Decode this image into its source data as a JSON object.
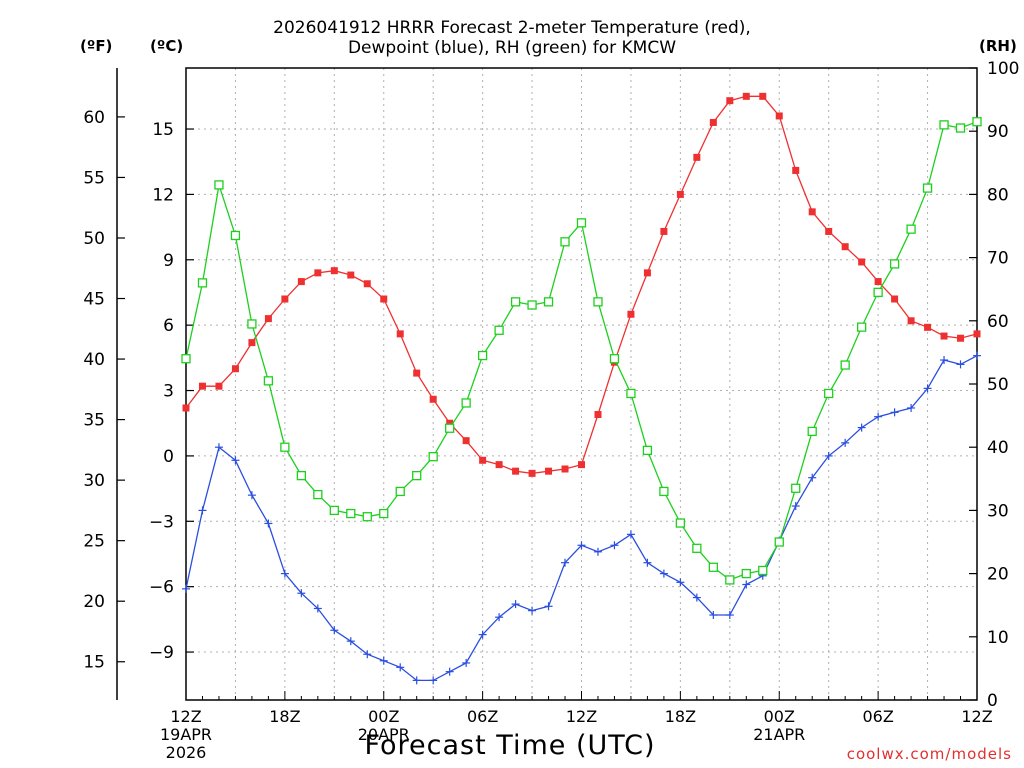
{
  "title_line1": "2026041912 HRRR Forecast 2-meter Temperature (red),",
  "title_line2": "Dewpoint (blue), RH (green) for KMCW",
  "unit_f": "(ºF)",
  "unit_c": "(ºC)",
  "unit_rh": "(RH)",
  "credit": "coolwx.com/models",
  "chart_data": {
    "type": "line",
    "title": "2026041912 HRRR Forecast 2-meter Temperature (red), Dewpoint (blue), RH (green) for KMCW",
    "xlabel": "Forecast Time (UTC)",
    "x_hours": [
      0,
      1,
      2,
      3,
      4,
      5,
      6,
      7,
      8,
      9,
      10,
      11,
      12,
      13,
      14,
      15,
      16,
      17,
      18,
      19,
      20,
      21,
      22,
      23,
      24,
      25,
      26,
      27,
      28,
      29,
      30,
      31,
      32,
      33,
      34,
      35,
      36,
      37,
      38,
      39,
      40,
      41,
      42,
      43,
      44,
      45,
      46,
      47,
      48
    ],
    "x_ticks": [
      {
        "hour": 0,
        "lines": [
          "12Z",
          "19APR",
          "2026"
        ]
      },
      {
        "hour": 6,
        "lines": [
          "18Z"
        ]
      },
      {
        "hour": 12,
        "lines": [
          "00Z",
          "20APR"
        ]
      },
      {
        "hour": 18,
        "lines": [
          "06Z"
        ]
      },
      {
        "hour": 24,
        "lines": [
          "12Z"
        ]
      },
      {
        "hour": 30,
        "lines": [
          "18Z"
        ]
      },
      {
        "hour": 36,
        "lines": [
          "00Z",
          "21APR"
        ]
      },
      {
        "hour": 42,
        "lines": [
          "06Z"
        ]
      },
      {
        "hour": 48,
        "lines": [
          "12Z"
        ]
      }
    ],
    "xlim": [
      0,
      48
    ],
    "y_c_ticks": [
      -9,
      -6,
      -3,
      0,
      3,
      6,
      9,
      12,
      15
    ],
    "y_c_range": [
      -11.2,
      17.8
    ],
    "y_f_ticks": [
      15,
      20,
      25,
      30,
      35,
      40,
      45,
      50,
      55,
      60
    ],
    "y_rh_ticks": [
      0,
      10,
      20,
      30,
      40,
      50,
      60,
      70,
      80,
      90,
      100
    ],
    "y_rh_range": [
      0,
      100
    ],
    "grid": true,
    "series": [
      {
        "name": "Temperature",
        "unit": "C",
        "color": "#ef3030",
        "marker": "filled-square",
        "values": [
          2.2,
          3.2,
          3.2,
          4.0,
          5.2,
          6.3,
          7.2,
          8.0,
          8.4,
          8.5,
          8.3,
          7.9,
          7.2,
          5.6,
          3.8,
          2.6,
          1.5,
          0.7,
          -0.2,
          -0.4,
          -0.7,
          -0.8,
          -0.7,
          -0.6,
          -0.4,
          1.9,
          4.3,
          6.5,
          8.4,
          10.3,
          12.0,
          13.7,
          15.3,
          16.3,
          16.5,
          16.5,
          15.6,
          13.1,
          11.2,
          10.3,
          9.6,
          8.9,
          8.0,
          7.2,
          6.2,
          5.9,
          5.5,
          5.4,
          5.6
        ]
      },
      {
        "name": "Dewpoint",
        "unit": "C",
        "color": "#2a4ee0",
        "marker": "plus",
        "values": [
          -6.1,
          -2.5,
          0.4,
          -0.2,
          -1.8,
          -3.1,
          -5.4,
          -6.3,
          -7.0,
          -8.0,
          -8.5,
          -9.1,
          -9.4,
          -9.7,
          -10.3,
          -10.3,
          -9.9,
          -9.5,
          -8.2,
          -7.4,
          -6.8,
          -7.1,
          -6.9,
          -4.9,
          -4.1,
          -4.4,
          -4.1,
          -3.6,
          -4.9,
          -5.4,
          -5.8,
          -6.5,
          -7.3,
          -7.3,
          -5.9,
          -5.5,
          -3.9,
          -2.3,
          -1.0,
          0.0,
          0.6,
          1.3,
          1.8,
          2.0,
          2.2,
          3.1,
          4.4,
          4.2,
          4.6
        ]
      },
      {
        "name": "RH",
        "unit": "%",
        "color": "#1ed01e",
        "marker": "open-square",
        "values": [
          54,
          66,
          81.5,
          73.5,
          59.5,
          50.5,
          40,
          35.5,
          32.5,
          30,
          29.5,
          29,
          29.5,
          33,
          35.5,
          38.5,
          43,
          47,
          54.5,
          58.5,
          63,
          62.5,
          63,
          72.5,
          75.5,
          63,
          54,
          48.5,
          39.5,
          33,
          28,
          24,
          21,
          19,
          20,
          20.5,
          25,
          33.5,
          42.5,
          48.5,
          53,
          59,
          64.5,
          69,
          74.5,
          81,
          91,
          90.5,
          91.5
        ]
      }
    ]
  }
}
